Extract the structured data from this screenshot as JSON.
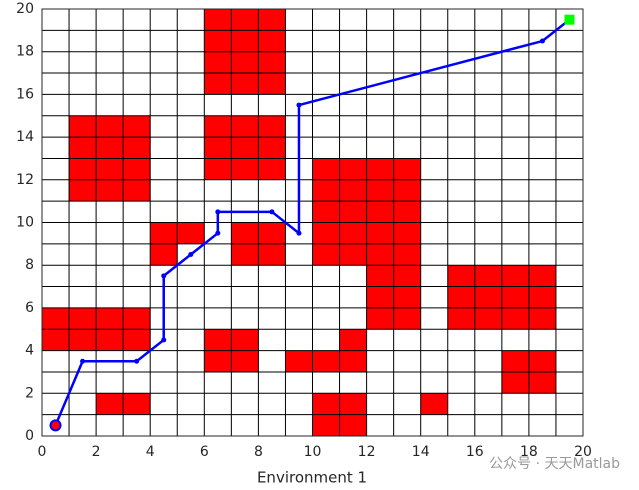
{
  "chart_data": {
    "type": "gridmap",
    "xlabel": "Environment 1",
    "xlim": [
      0,
      20
    ],
    "ylim": [
      0,
      20
    ],
    "xticks": [
      0,
      2,
      4,
      6,
      8,
      10,
      12,
      14,
      16,
      18,
      20
    ],
    "yticks": [
      0,
      2,
      4,
      6,
      8,
      10,
      12,
      14,
      16,
      18,
      20
    ],
    "xminorticks": [
      1,
      3,
      5,
      7,
      9,
      11,
      13,
      15,
      17,
      19
    ],
    "yminorticks": [
      1,
      3,
      5,
      7,
      9,
      11,
      13,
      15,
      17,
      19
    ],
    "grid": true,
    "obstacle_color": "#ff0000",
    "obstacles": [
      {
        "x": 6,
        "y": 16,
        "w": 3,
        "h": 4
      },
      {
        "x": 6,
        "y": 12,
        "w": 3,
        "h": 3
      },
      {
        "x": 1,
        "y": 11,
        "w": 3,
        "h": 4
      },
      {
        "x": 10,
        "y": 8,
        "w": 4,
        "h": 5
      },
      {
        "x": 12,
        "y": 5,
        "w": 2,
        "h": 3
      },
      {
        "x": 15,
        "y": 5,
        "w": 4,
        "h": 3
      },
      {
        "x": 4,
        "y": 9,
        "w": 2,
        "h": 1
      },
      {
        "x": 4,
        "y": 8,
        "w": 1,
        "h": 1
      },
      {
        "x": 7,
        "y": 8,
        "w": 2,
        "h": 2
      },
      {
        "x": 0,
        "y": 4,
        "w": 4,
        "h": 2
      },
      {
        "x": 6,
        "y": 3,
        "w": 2,
        "h": 2
      },
      {
        "x": 9,
        "y": 3,
        "w": 3,
        "h": 1
      },
      {
        "x": 11,
        "y": 4,
        "w": 1,
        "h": 1
      },
      {
        "x": 17,
        "y": 2,
        "w": 2,
        "h": 2
      },
      {
        "x": 2,
        "y": 1,
        "w": 2,
        "h": 1
      },
      {
        "x": 10,
        "y": 0,
        "w": 2,
        "h": 2
      },
      {
        "x": 14,
        "y": 1,
        "w": 1,
        "h": 1
      }
    ],
    "path": {
      "color": "#0000ff",
      "x": [
        0.5,
        1.5,
        3.5,
        4.5,
        4.5,
        5.5,
        6.5,
        6.5,
        8.5,
        9.5,
        9.5,
        18.5,
        19.5
      ],
      "y": [
        0.5,
        3.5,
        3.5,
        4.5,
        7.5,
        8.5,
        9.5,
        10.5,
        10.5,
        9.5,
        15.5,
        18.5,
        19.5
      ]
    },
    "start": {
      "x": 0.5,
      "y": 0.5,
      "color": "#ff0000"
    },
    "goal": {
      "x": 19.5,
      "y": 19.5,
      "color": "#00ff00"
    },
    "watermark": "公众号 · 天天Matlab"
  }
}
